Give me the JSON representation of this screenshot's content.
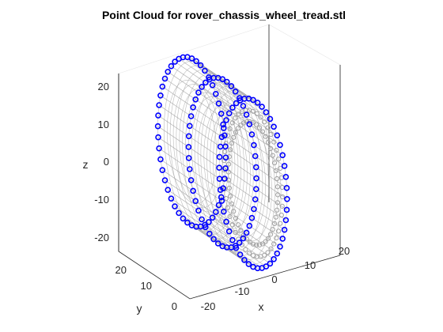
{
  "chart_data": {
    "type": "scatter3d",
    "title": "Point Cloud for rover_chassis_wheel_tread.stl",
    "xlabel": "x",
    "ylabel": "y",
    "zlabel": "z",
    "xlim": [
      -25,
      25
    ],
    "ylim": [
      0,
      25
    ],
    "zlim": [
      -22,
      22
    ],
    "x_ticks": [
      "-20",
      "-10",
      "0",
      "10",
      "20"
    ],
    "y_ticks": [
      "0",
      "10",
      "20"
    ],
    "z_ticks": [
      "-20",
      "-10",
      "0",
      "10",
      "20"
    ],
    "grid": true,
    "tread": {
      "outer_radius": 22,
      "inner_radius": 16,
      "y_from": 0,
      "y_to": 25,
      "surface_color": "#a0a0a0"
    },
    "series": [
      {
        "color": "#0000ff",
        "marker": "o",
        "y": 0,
        "radius": 22
      },
      {
        "color": "#0000ff",
        "marker": "o",
        "y": 12.5,
        "radius": 22
      },
      {
        "color": "#0000ff",
        "marker": "o",
        "y": 25,
        "radius": 22
      }
    ]
  }
}
